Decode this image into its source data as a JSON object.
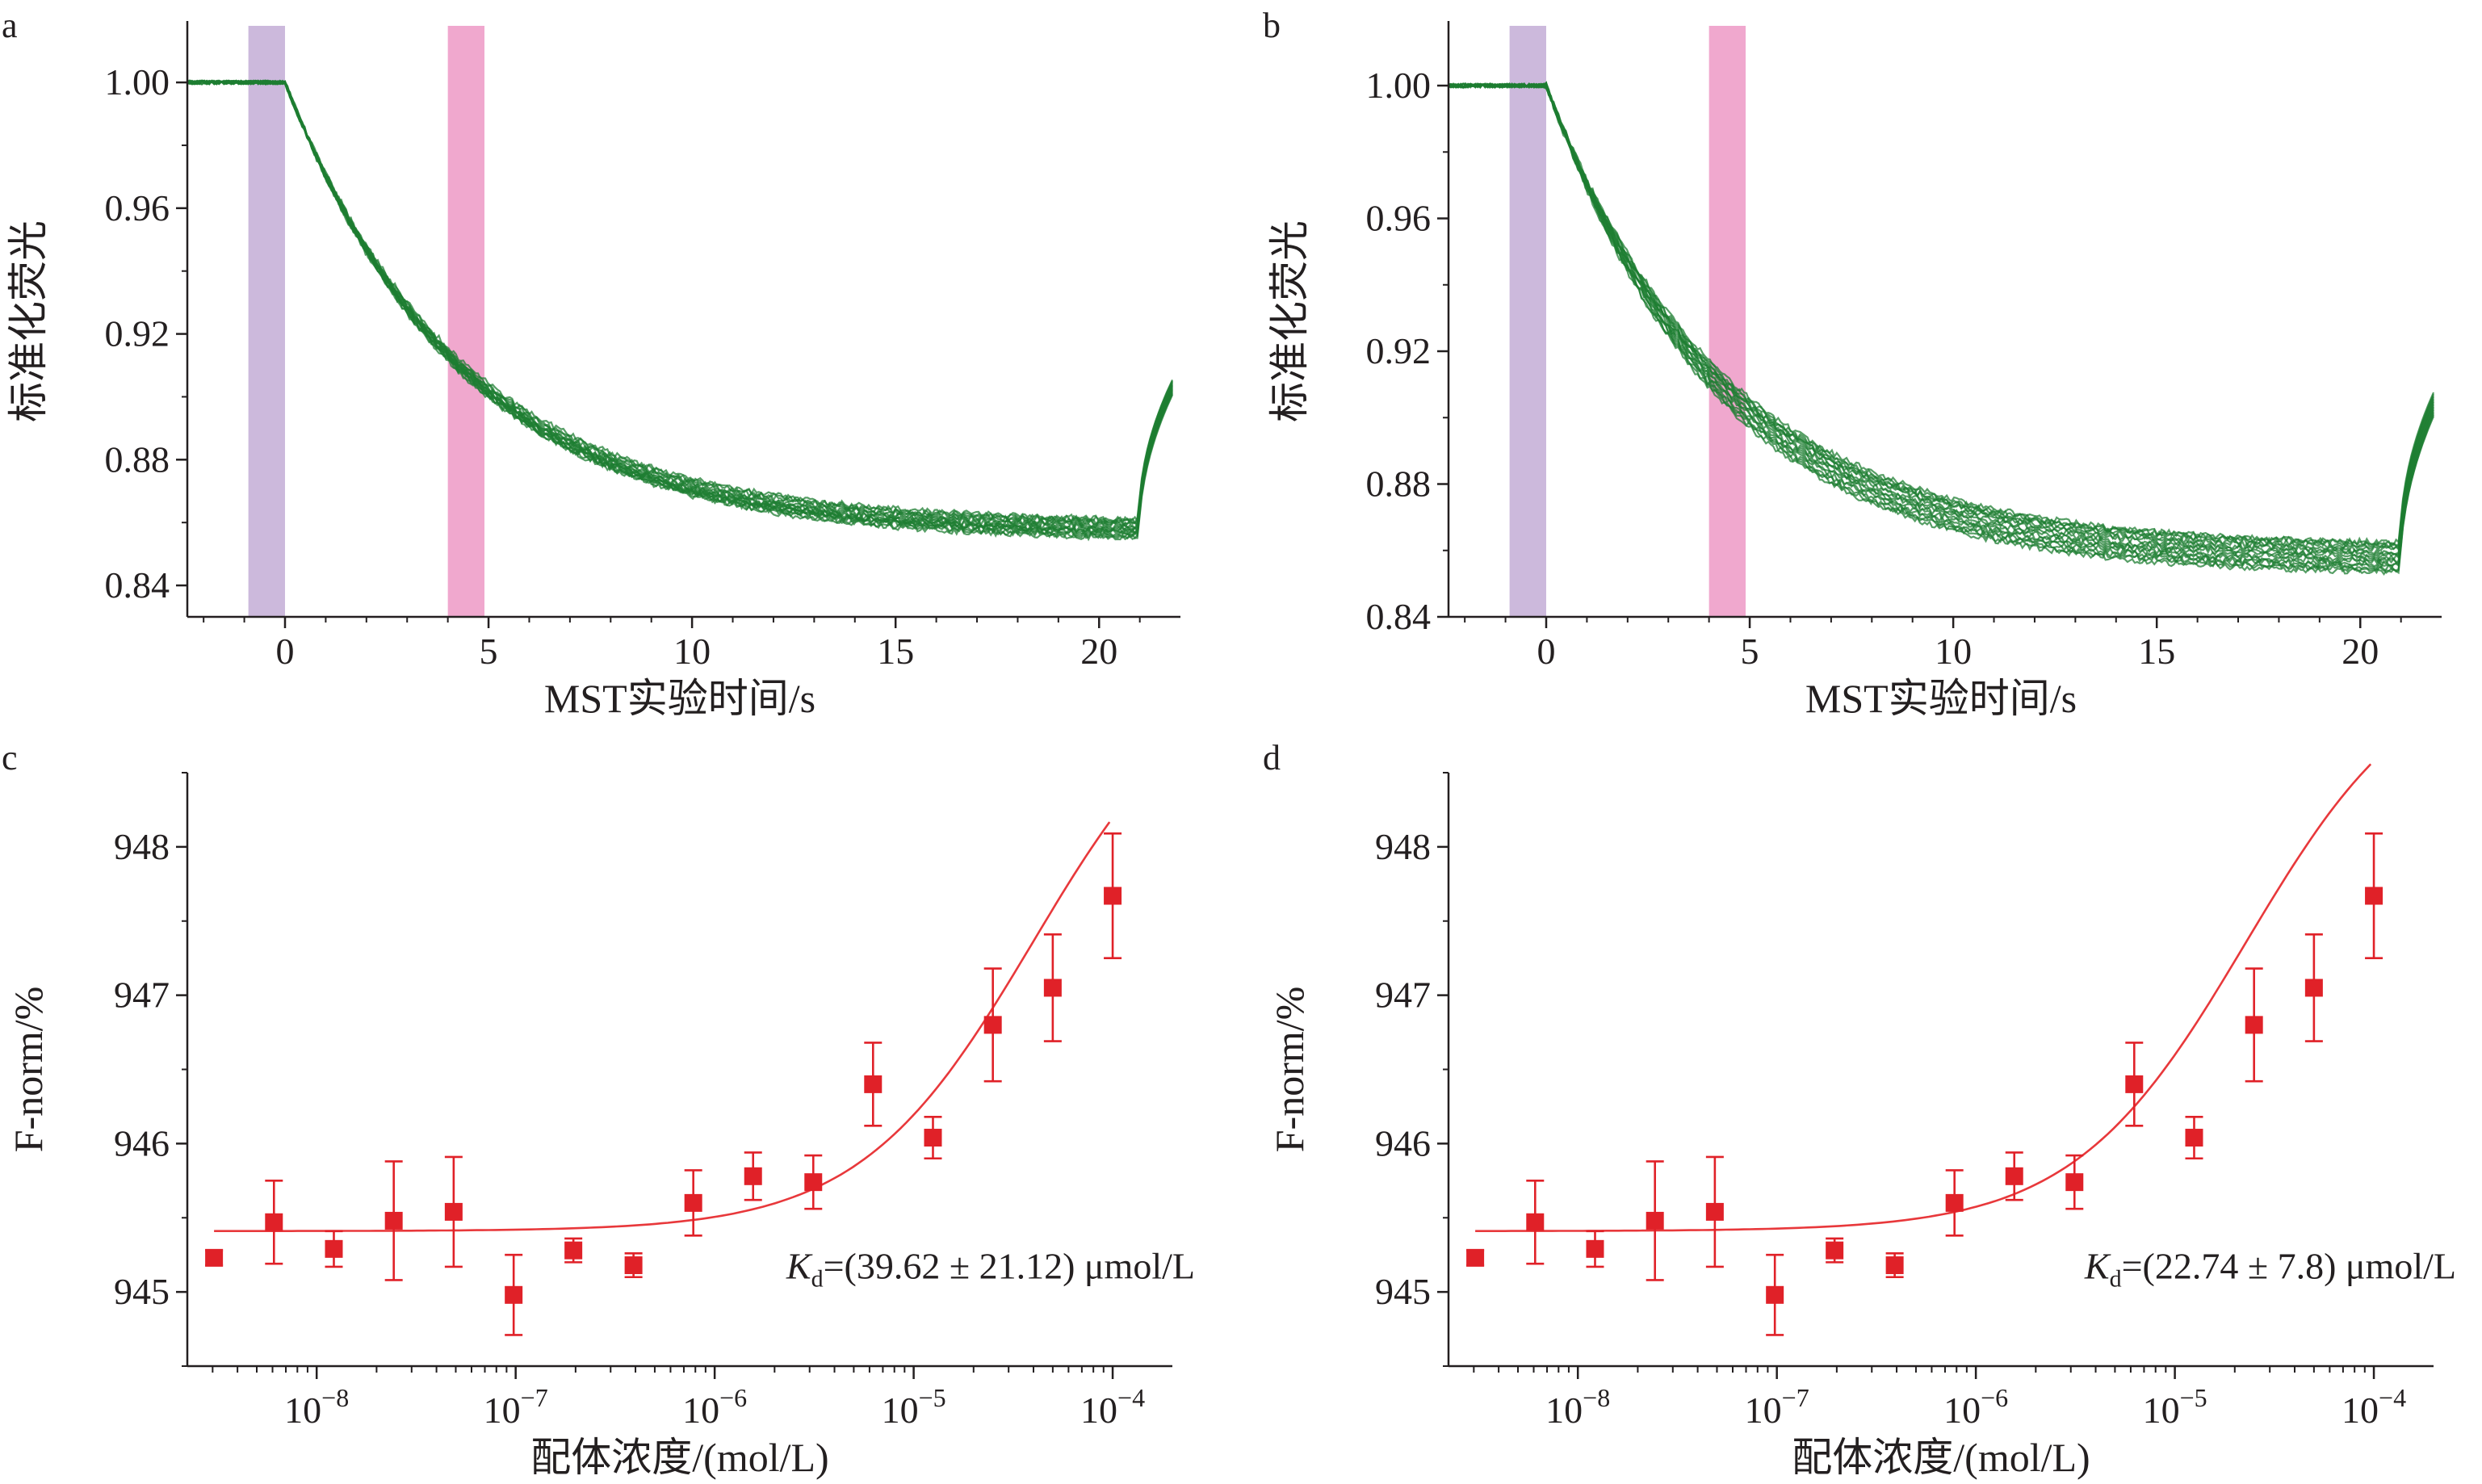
{
  "colors": {
    "trace": "#1e7d32",
    "cold_band": "#c7b1d8",
    "hot_band": "#ee9fc9",
    "fit": "#e8383b",
    "points": "#e02128",
    "axis": "#231f20"
  },
  "chart_data": [
    {
      "panel": "a",
      "type": "line",
      "xlabel": "MST实验时间/s",
      "ylabel": "标准化荧光",
      "xlim": [
        -2.4,
        21.8
      ],
      "ylim": [
        0.83,
        1.018
      ],
      "x_ticks": [
        0,
        5,
        10,
        15,
        20
      ],
      "x_tick_labels": [
        "0",
        "5",
        "10",
        "15",
        "20"
      ],
      "y_ticks": [
        0.84,
        0.88,
        0.92,
        0.96,
        1.0
      ],
      "y_tick_labels": [
        "0.84",
        "0.88",
        "0.92",
        "0.96",
        "1.00"
      ],
      "regions": [
        {
          "name": "cold",
          "x": [
            -0.9,
            0.0
          ]
        },
        {
          "name": "hot",
          "x": [
            4.0,
            4.9
          ]
        }
      ],
      "trace_count": 16,
      "trace_model": {
        "baseline": 1.0,
        "laser_on": 0.0,
        "plateau": 0.857,
        "tau": 4.3,
        "laser_off": 20.98,
        "recovery_end": [
          21.8,
          0.903
        ]
      },
      "trace_spread_end": 0.006
    },
    {
      "panel": "b",
      "type": "line",
      "xlabel": "MST实验时间/s",
      "ylabel": "标准化荧光",
      "xlim": [
        -2.4,
        21.8
      ],
      "ylim": [
        0.84,
        1.018
      ],
      "x_ticks": [
        0,
        5,
        10,
        15,
        20
      ],
      "x_tick_labels": [
        "0",
        "5",
        "10",
        "15",
        "20"
      ],
      "y_ticks": [
        0.84,
        0.88,
        0.92,
        0.96,
        1.0
      ],
      "y_tick_labels": [
        "0.84",
        "0.88",
        "0.92",
        "0.96",
        "1.00"
      ],
      "regions": [
        {
          "name": "cold",
          "x": [
            -0.9,
            0.0
          ]
        },
        {
          "name": "hot",
          "x": [
            4.0,
            4.9
          ]
        }
      ],
      "trace_count": 16,
      "trace_model": {
        "baseline": 1.0,
        "laser_on": 0.0,
        "plateau": 0.857,
        "tau": 4.3,
        "laser_off": 20.98,
        "recovery_end": [
          21.8,
          0.904
        ]
      },
      "trace_spread_end": 0.009
    },
    {
      "panel": "c",
      "type": "scatter",
      "xlabel": "配体浓度/(mol/L)",
      "ylabel": "F-norm/%",
      "xscale": "log",
      "xlim_log10": [
        -8.65,
        -3.7
      ],
      "ylim": [
        944.5,
        948.5
      ],
      "x_ticks_log10": [
        -8,
        -7,
        -6,
        -5,
        -4
      ],
      "x_tick_base": "10",
      "x_tick_exponents": [
        "−8",
        "−7",
        "−6",
        "−5",
        "−4"
      ],
      "y_ticks": [
        945,
        946,
        947,
        948
      ],
      "y_tick_labels": [
        "945",
        "946",
        "947",
        "948"
      ],
      "points": [
        {
          "x": 3.05e-09,
          "y": 945.23,
          "err": 0.05
        },
        {
          "x": 6.1e-09,
          "y": 945.47,
          "err": 0.28
        },
        {
          "x": 1.22e-08,
          "y": 945.29,
          "err": 0.12
        },
        {
          "x": 2.44e-08,
          "y": 945.48,
          "err": 0.4
        },
        {
          "x": 4.88e-08,
          "y": 945.54,
          "err": 0.37
        },
        {
          "x": 9.77e-08,
          "y": 944.98,
          "err": 0.27
        },
        {
          "x": 1.95e-07,
          "y": 945.28,
          "err": 0.08
        },
        {
          "x": 3.91e-07,
          "y": 945.18,
          "err": 0.08
        },
        {
          "x": 7.81e-07,
          "y": 945.6,
          "err": 0.22
        },
        {
          "x": 1.56e-06,
          "y": 945.78,
          "err": 0.16
        },
        {
          "x": 3.13e-06,
          "y": 945.74,
          "err": 0.18
        },
        {
          "x": 6.25e-06,
          "y": 946.4,
          "err": 0.28
        },
        {
          "x": 1.25e-05,
          "y": 946.04,
          "err": 0.14
        },
        {
          "x": 2.5e-05,
          "y": 946.8,
          "err": 0.38
        },
        {
          "x": 5e-05,
          "y": 947.05,
          "err": 0.36
        },
        {
          "x": 0.0001,
          "y": 947.67,
          "err": 0.42
        }
      ],
      "fit": {
        "unbound": 945.41,
        "bound": 949.3,
        "kd": 3.962e-05
      },
      "annotation": {
        "k": "K",
        "sub": "d",
        "text": "=(39.62 ± 21.12)  μmol/L"
      }
    },
    {
      "panel": "d",
      "type": "scatter",
      "xlabel": "配体浓度/(mol/L)",
      "ylabel": "F-norm/%",
      "xscale": "log",
      "xlim_log10": [
        -8.65,
        -3.7
      ],
      "ylim": [
        944.5,
        948.5
      ],
      "x_ticks_log10": [
        -8,
        -7,
        -6,
        -5,
        -4
      ],
      "x_tick_base": "10",
      "x_tick_exponents": [
        "−8",
        "−7",
        "−6",
        "−5",
        "−4"
      ],
      "y_ticks": [
        945,
        946,
        947,
        948
      ],
      "y_tick_labels": [
        "945",
        "946",
        "947",
        "948"
      ],
      "points": [
        {
          "x": 3.05e-09,
          "y": 945.23,
          "err": 0.05
        },
        {
          "x": 6.1e-09,
          "y": 945.47,
          "err": 0.28
        },
        {
          "x": 1.22e-08,
          "y": 945.29,
          "err": 0.12
        },
        {
          "x": 2.44e-08,
          "y": 945.48,
          "err": 0.4
        },
        {
          "x": 4.88e-08,
          "y": 945.54,
          "err": 0.37
        },
        {
          "x": 9.77e-08,
          "y": 944.98,
          "err": 0.27
        },
        {
          "x": 1.95e-07,
          "y": 945.28,
          "err": 0.08
        },
        {
          "x": 3.91e-07,
          "y": 945.18,
          "err": 0.08
        },
        {
          "x": 7.81e-07,
          "y": 945.6,
          "err": 0.22
        },
        {
          "x": 1.56e-06,
          "y": 945.78,
          "err": 0.16
        },
        {
          "x": 3.13e-06,
          "y": 945.74,
          "err": 0.18
        },
        {
          "x": 6.25e-06,
          "y": 946.4,
          "err": 0.28
        },
        {
          "x": 1.25e-05,
          "y": 946.04,
          "err": 0.14
        },
        {
          "x": 2.5e-05,
          "y": 946.8,
          "err": 0.38
        },
        {
          "x": 5e-05,
          "y": 947.05,
          "err": 0.36
        },
        {
          "x": 0.0001,
          "y": 947.67,
          "err": 0.42
        }
      ],
      "fit": {
        "unbound": 945.41,
        "bound": 949.3,
        "kd": 2.274e-05
      },
      "annotation": {
        "k": "K",
        "sub": "d",
        "text": "=(22.74 ± 7.8)  μmol/L"
      }
    }
  ]
}
